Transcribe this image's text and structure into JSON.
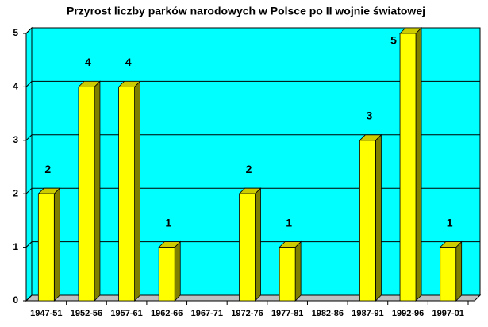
{
  "chart_data": {
    "type": "bar3d",
    "title": "Przyrost liczby parków narodowych w Polsce po II wojnie światowej",
    "categories": [
      "1947-51",
      "1952-56",
      "1957-61",
      "1962-66",
      "1967-71",
      "1972-76",
      "1977-81",
      "1982-86",
      "1987-91",
      "1992-96",
      "1997-01"
    ],
    "values": [
      2,
      4,
      4,
      1,
      0,
      2,
      1,
      0,
      3,
      5,
      1
    ],
    "color": "#ffff00",
    "wall_color": "#00ffff",
    "ylim": [
      0,
      5
    ],
    "yticks": [
      0,
      1,
      2,
      3,
      4,
      5
    ],
    "grid": true
  }
}
